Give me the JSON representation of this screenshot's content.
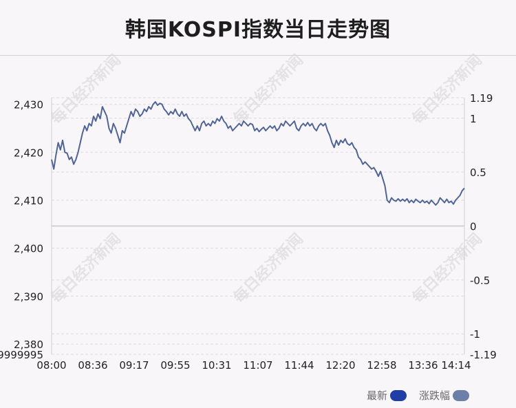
{
  "title": "韩国KOSPI指数当日走势图",
  "watermark": "每日经济新闻",
  "legend": [
    {
      "label": "最新",
      "color": "#1f3fa6"
    },
    {
      "label": "涨跌幅",
      "color": "#6b7fa8"
    }
  ],
  "colors": {
    "line": "#4f6495",
    "grid": "#dcdcdc",
    "baseline": "#c8c8c8"
  },
  "chart_data": {
    "type": "line",
    "ylim": [
      2377.86,
      2431.38
    ],
    "y_ticks": [
      2380,
      2390,
      2400,
      2410,
      2420,
      2430
    ],
    "y_tick_labels": [
      "2,380",
      "2,390",
      "2,400",
      "2,410",
      "2,420",
      "2,430"
    ],
    "y_bottom_label": "9999995",
    "y2lim": [
      -1.19,
      1.19
    ],
    "y2_ticks": [
      1.19,
      1,
      0.5,
      0,
      -0.5,
      -1,
      -1.19
    ],
    "y2_tick_labels": [
      "1.19",
      "1",
      "0.5",
      "0",
      "-0.5",
      "-1",
      "-1.19"
    ],
    "x_tick_labels": [
      "08:00",
      "08:36",
      "09:17",
      "09:55",
      "10:31",
      "11:07",
      "11:44",
      "12:20",
      "12:58",
      "13:36",
      "14:14"
    ],
    "x_range_minutes": [
      0,
      374
    ],
    "series": [
      {
        "points": [
          [
            0,
            2418.5
          ],
          [
            2,
            2416.5
          ],
          [
            4,
            2419.5
          ],
          [
            6,
            2422.0
          ],
          [
            8,
            2420.5
          ],
          [
            10,
            2422.5
          ],
          [
            12,
            2420.0
          ],
          [
            14,
            2419.8
          ],
          [
            16,
            2418.5
          ],
          [
            18,
            2419.0
          ],
          [
            20,
            2417.5
          ],
          [
            22,
            2418.5
          ],
          [
            24,
            2420.0
          ],
          [
            26,
            2422.0
          ],
          [
            28,
            2424.0
          ],
          [
            30,
            2425.5
          ],
          [
            32,
            2424.5
          ],
          [
            34,
            2426.0
          ],
          [
            36,
            2425.5
          ],
          [
            38,
            2427.5
          ],
          [
            40,
            2426.5
          ],
          [
            42,
            2428.0
          ],
          [
            44,
            2427.0
          ],
          [
            46,
            2429.5
          ],
          [
            48,
            2428.5
          ],
          [
            50,
            2427.5
          ],
          [
            52,
            2425.0
          ],
          [
            54,
            2424.0
          ],
          [
            56,
            2426.0
          ],
          [
            58,
            2425.0
          ],
          [
            60,
            2423.5
          ],
          [
            62,
            2422.0
          ],
          [
            64,
            2424.5
          ],
          [
            66,
            2424.0
          ],
          [
            68,
            2425.5
          ],
          [
            70,
            2427.0
          ],
          [
            72,
            2428.5
          ],
          [
            74,
            2427.5
          ],
          [
            76,
            2429.0
          ],
          [
            78,
            2428.5
          ],
          [
            80,
            2427.5
          ],
          [
            82,
            2428.0
          ],
          [
            84,
            2429.0
          ],
          [
            86,
            2428.5
          ],
          [
            88,
            2429.5
          ],
          [
            90,
            2429.0
          ],
          [
            92,
            2430.0
          ],
          [
            94,
            2430.5
          ],
          [
            96,
            2429.8
          ],
          [
            98,
            2430.2
          ],
          [
            100,
            2430.0
          ],
          [
            102,
            2429.0
          ],
          [
            104,
            2428.5
          ],
          [
            106,
            2427.8
          ],
          [
            108,
            2428.5
          ],
          [
            110,
            2428.0
          ],
          [
            112,
            2429.0
          ],
          [
            114,
            2428.0
          ],
          [
            116,
            2427.5
          ],
          [
            118,
            2428.5
          ],
          [
            120,
            2427.5
          ],
          [
            122,
            2428.0
          ],
          [
            124,
            2427.0
          ],
          [
            126,
            2426.5
          ],
          [
            128,
            2425.5
          ],
          [
            130,
            2424.5
          ],
          [
            132,
            2425.5
          ],
          [
            134,
            2424.5
          ],
          [
            136,
            2426.0
          ],
          [
            138,
            2426.5
          ],
          [
            140,
            2425.5
          ],
          [
            142,
            2426.0
          ],
          [
            144,
            2425.5
          ],
          [
            146,
            2426.5
          ],
          [
            148,
            2426.0
          ],
          [
            150,
            2427.0
          ],
          [
            152,
            2426.5
          ],
          [
            154,
            2427.5
          ],
          [
            156,
            2426.5
          ],
          [
            158,
            2426.0
          ],
          [
            160,
            2425.0
          ],
          [
            162,
            2425.5
          ],
          [
            164,
            2424.5
          ],
          [
            166,
            2425.0
          ],
          [
            168,
            2425.5
          ],
          [
            170,
            2426.0
          ],
          [
            172,
            2425.5
          ],
          [
            174,
            2426.5
          ],
          [
            176,
            2426.0
          ],
          [
            178,
            2425.5
          ],
          [
            180,
            2426.0
          ],
          [
            182,
            2425.8
          ],
          [
            184,
            2424.5
          ],
          [
            186,
            2425.0
          ],
          [
            188,
            2424.3
          ],
          [
            190,
            2424.8
          ],
          [
            192,
            2425.2
          ],
          [
            194,
            2424.5
          ],
          [
            196,
            2425.0
          ],
          [
            198,
            2425.5
          ],
          [
            200,
            2425.0
          ],
          [
            202,
            2425.5
          ],
          [
            204,
            2424.5
          ],
          [
            206,
            2425.0
          ],
          [
            208,
            2426.0
          ],
          [
            210,
            2425.5
          ],
          [
            212,
            2426.5
          ],
          [
            214,
            2426.0
          ],
          [
            216,
            2425.5
          ],
          [
            218,
            2426.0
          ],
          [
            220,
            2426.5
          ],
          [
            222,
            2425.0
          ],
          [
            224,
            2424.5
          ],
          [
            226,
            2425.5
          ],
          [
            228,
            2426.0
          ],
          [
            230,
            2425.5
          ],
          [
            232,
            2426.2
          ],
          [
            234,
            2425.5
          ],
          [
            236,
            2426.0
          ],
          [
            238,
            2425.0
          ],
          [
            240,
            2424.5
          ],
          [
            242,
            2425.5
          ],
          [
            244,
            2426.0
          ],
          [
            246,
            2425.5
          ],
          [
            248,
            2426.0
          ],
          [
            250,
            2424.5
          ],
          [
            252,
            2423.5
          ],
          [
            254,
            2422.0
          ],
          [
            256,
            2421.0
          ],
          [
            258,
            2422.5
          ],
          [
            260,
            2421.5
          ],
          [
            262,
            2422.5
          ],
          [
            264,
            2422.0
          ],
          [
            266,
            2422.8
          ],
          [
            268,
            2421.8
          ],
          [
            270,
            2421.5
          ],
          [
            272,
            2422.0
          ],
          [
            274,
            2421.0
          ],
          [
            276,
            2420.5
          ],
          [
            278,
            2419.0
          ],
          [
            280,
            2418.5
          ],
          [
            282,
            2417.5
          ],
          [
            284,
            2418.0
          ],
          [
            286,
            2417.5
          ],
          [
            288,
            2417.0
          ],
          [
            290,
            2416.5
          ],
          [
            292,
            2416.8
          ],
          [
            294,
            2416.0
          ],
          [
            296,
            2415.0
          ],
          [
            298,
            2416.0
          ],
          [
            300,
            2414.5
          ],
          [
            302,
            2413.0
          ],
          [
            304,
            2410.0
          ],
          [
            306,
            2409.5
          ],
          [
            308,
            2410.5
          ],
          [
            310,
            2410.0
          ],
          [
            312,
            2409.8
          ],
          [
            314,
            2410.3
          ],
          [
            316,
            2409.8
          ],
          [
            318,
            2410.2
          ],
          [
            320,
            2409.8
          ],
          [
            322,
            2410.3
          ],
          [
            324,
            2409.5
          ],
          [
            326,
            2410.0
          ],
          [
            328,
            2409.5
          ],
          [
            330,
            2410.2
          ],
          [
            332,
            2409.8
          ],
          [
            334,
            2409.5
          ],
          [
            336,
            2410.0
          ],
          [
            338,
            2409.5
          ],
          [
            340,
            2409.8
          ],
          [
            342,
            2409.3
          ],
          [
            344,
            2410.0
          ],
          [
            346,
            2409.5
          ],
          [
            348,
            2409.0
          ],
          [
            350,
            2409.5
          ],
          [
            352,
            2410.5
          ],
          [
            354,
            2410.0
          ],
          [
            356,
            2409.5
          ],
          [
            358,
            2410.2
          ],
          [
            360,
            2409.5
          ],
          [
            362,
            2409.8
          ],
          [
            364,
            2409.2
          ],
          [
            366,
            2410.0
          ],
          [
            368,
            2410.5
          ],
          [
            370,
            2411.0
          ],
          [
            372,
            2412.0
          ],
          [
            374,
            2412.5
          ]
        ]
      }
    ]
  }
}
